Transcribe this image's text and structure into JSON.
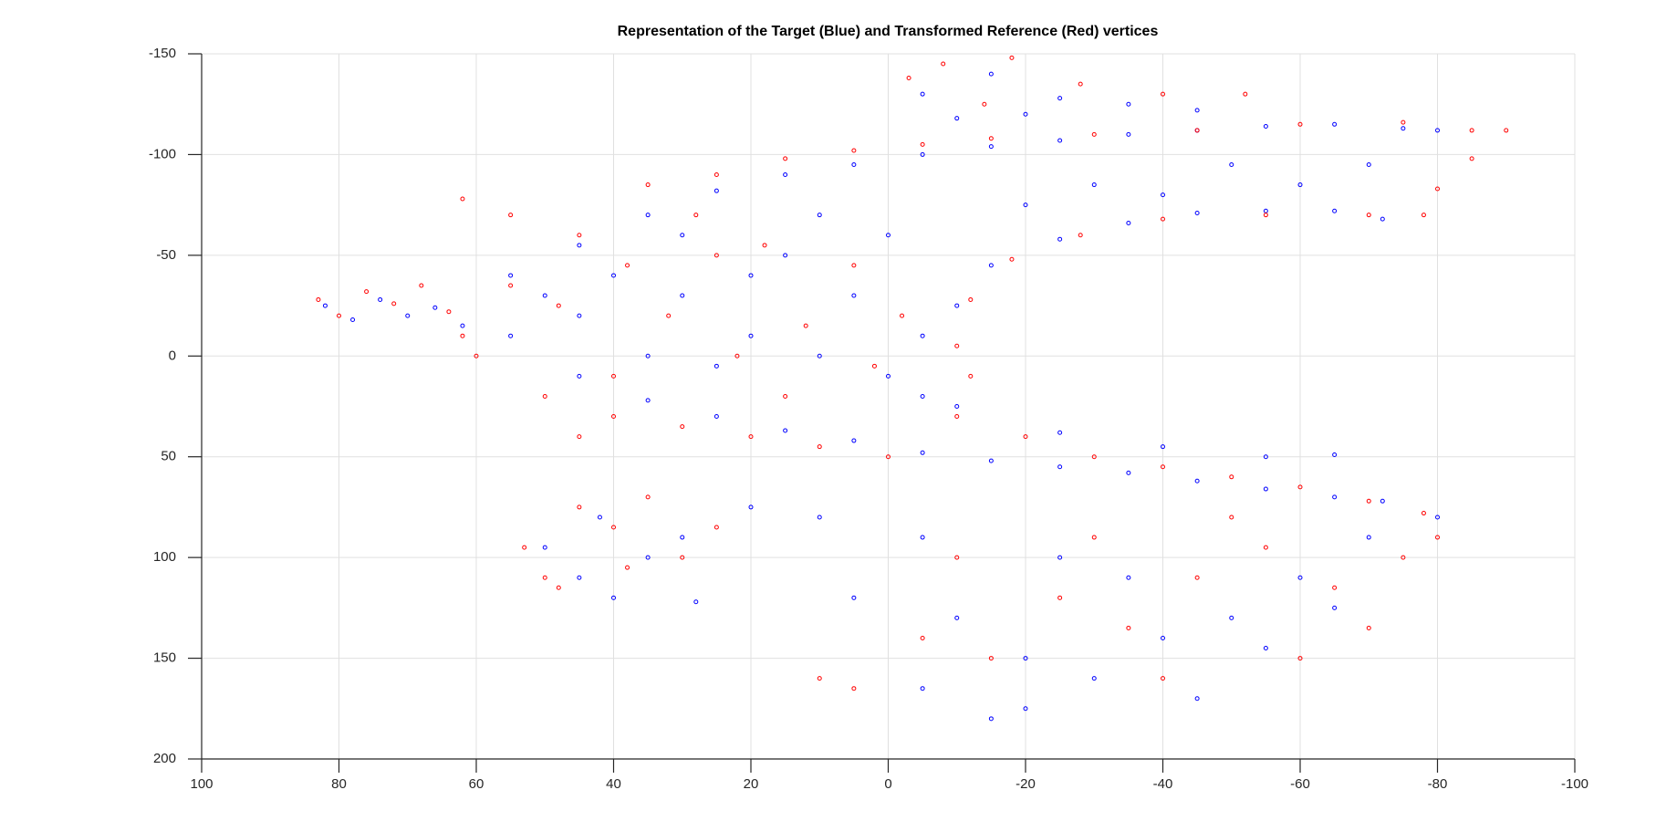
{
  "chart_data": {
    "type": "scatter",
    "title": "Representation of the Target (Blue) and Transformed Reference (Red) vertices",
    "xlim": [
      100,
      -100
    ],
    "xticks": [
      100,
      80,
      60,
      40,
      20,
      0,
      -20,
      -40,
      -60,
      -80,
      -100
    ],
    "ylim": [
      -150,
      200
    ],
    "yticks": [
      -150,
      -100,
      -50,
      0,
      50,
      100,
      150,
      200
    ],
    "grid": true,
    "series": [
      {
        "color": "#0000ff",
        "x": [
          82,
          78,
          74,
          70,
          66,
          62,
          55,
          45,
          35,
          25,
          15,
          5,
          -5,
          -15,
          -25,
          -35,
          -45,
          -55,
          -65,
          -75,
          -80,
          -10,
          -15,
          -25,
          -35,
          -45,
          -55,
          -65,
          -72,
          -30,
          -50,
          -60,
          -70,
          -40,
          -20,
          10,
          0,
          55,
          45,
          35,
          25,
          15,
          5,
          -5,
          -15,
          -25,
          -35,
          -45,
          -55,
          -65,
          -72,
          -10,
          -25,
          -40,
          -55,
          -65,
          40,
          30,
          20,
          10,
          0,
          -5,
          15,
          30,
          45,
          25,
          5,
          -5,
          35,
          50,
          20,
          -5,
          -15,
          -25,
          -35,
          -10,
          -20,
          -45,
          -10,
          -20,
          -30,
          -15,
          -40,
          -50,
          -60,
          -70,
          -80,
          -35,
          -25,
          -5,
          10,
          -45,
          -55,
          -65,
          -20,
          -5,
          5,
          20,
          50,
          45,
          40,
          35,
          30,
          42,
          28
        ],
        "y": [
          -25,
          -18,
          -28,
          -20,
          -24,
          -15,
          -40,
          -55,
          -70,
          -82,
          -90,
          -95,
          -100,
          -104,
          -107,
          -110,
          -112,
          -114,
          -115,
          -113,
          -112,
          -25,
          -45,
          -58,
          -66,
          -71,
          -72,
          -72,
          -68,
          -85,
          -95,
          -85,
          -95,
          -80,
          -75,
          -70,
          -60,
          -10,
          10,
          22,
          30,
          37,
          42,
          48,
          52,
          55,
          58,
          62,
          66,
          70,
          72,
          25,
          38,
          45,
          50,
          49,
          -40,
          -30,
          -10,
          0,
          10,
          -10,
          -50,
          -60,
          -20,
          5,
          -30,
          20,
          0,
          -30,
          -40,
          -130,
          -140,
          -128,
          -125,
          -118,
          -120,
          -122,
          130,
          150,
          160,
          180,
          140,
          130,
          110,
          90,
          80,
          110,
          100,
          90,
          80,
          170,
          145,
          125,
          175,
          165,
          120,
          75,
          95,
          110,
          120,
          100,
          90,
          80,
          122
        ]
      },
      {
        "color": "#ff0000",
        "x": [
          83,
          80,
          76,
          72,
          68,
          64,
          62,
          62,
          55,
          45,
          35,
          25,
          15,
          5,
          -5,
          -15,
          -30,
          -45,
          -60,
          -75,
          -85,
          -90,
          -85,
          -80,
          -12,
          -18,
          -28,
          -40,
          -55,
          -70,
          -78,
          -8,
          -18,
          -28,
          -40,
          -52,
          -3,
          -14,
          38,
          32,
          22,
          12,
          2,
          -10,
          18,
          28,
          48,
          15,
          -12,
          40,
          55,
          25,
          5,
          -2,
          60,
          50,
          40,
          30,
          20,
          10,
          0,
          -10,
          -20,
          -30,
          -40,
          -50,
          -60,
          -70,
          -78,
          53,
          48,
          45,
          40,
          35,
          30,
          38,
          50,
          25,
          45,
          -10,
          -25,
          -35,
          -45,
          -55,
          -65,
          -75,
          -80,
          -60,
          -40,
          -15,
          5,
          10,
          -5,
          -30,
          -70,
          -50
        ],
        "y": [
          -28,
          -20,
          -32,
          -26,
          -35,
          -22,
          -10,
          -78,
          -70,
          -60,
          -85,
          -90,
          -98,
          -102,
          -105,
          -108,
          -110,
          -112,
          -115,
          -116,
          -112,
          -112,
          -98,
          -83,
          -28,
          -48,
          -60,
          -68,
          -70,
          -70,
          -70,
          -145,
          -148,
          -135,
          -130,
          -130,
          -138,
          -125,
          -45,
          -20,
          0,
          -15,
          5,
          -5,
          -55,
          -70,
          -25,
          20,
          10,
          10,
          -35,
          -50,
          -45,
          -20,
          0,
          20,
          30,
          35,
          40,
          45,
          50,
          30,
          40,
          50,
          55,
          60,
          65,
          72,
          78,
          95,
          115,
          75,
          85,
          70,
          100,
          105,
          110,
          85,
          40,
          100,
          120,
          135,
          110,
          95,
          115,
          100,
          90,
          150,
          160,
          150,
          165,
          160,
          140,
          90,
          135,
          80
        ]
      }
    ]
  }
}
